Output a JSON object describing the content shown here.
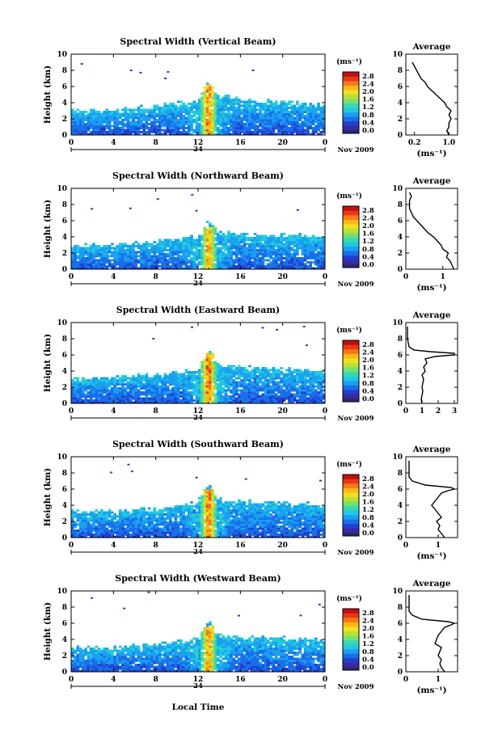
{
  "figure": {
    "xlabel": "Local Time",
    "date_label": "Nov 2009",
    "day_label": "24",
    "unit_label": "(ms⁻¹)",
    "average_title": "Average"
  },
  "colors": {
    "scale": [
      "#3a2aa0",
      "#1f3fd0",
      "#1a6fe8",
      "#1aa0f0",
      "#22c8e0",
      "#3ad8b0",
      "#78e070",
      "#b8e038",
      "#f0e020",
      "#f8b818",
      "#f87818",
      "#e83818",
      "#c01010"
    ],
    "base_floor": "#2a2a70",
    "text": "#000000"
  },
  "chart_data": [
    {
      "type": "heatmap",
      "title": "Spectral Width (Vertical Beam)",
      "ylabel": "Height (km)",
      "xlabel": "",
      "xlim": [
        0,
        24
      ],
      "ylim": [
        0,
        10
      ],
      "x_ticks": [
        "0",
        "4",
        "8",
        "12",
        "16",
        "20",
        "0"
      ],
      "y_ticks": [
        "0",
        "2",
        "4",
        "6",
        "8",
        "10"
      ],
      "colorbar": {
        "ticks": [
          "0.0",
          "0.4",
          "0.8",
          "1.2",
          "1.6",
          "2.0",
          "2.4",
          "2.8"
        ],
        "range": [
          0,
          3.0
        ]
      },
      "layer_top_km": [
        [
          0,
          3.0
        ],
        [
          4,
          3.0
        ],
        [
          8,
          3.6
        ],
        [
          12,
          4.2
        ],
        [
          13,
          6.5
        ],
        [
          14,
          4.8
        ],
        [
          18,
          4.2
        ],
        [
          22,
          4.0
        ],
        [
          24,
          3.6
        ]
      ],
      "core": {
        "x": 13.0,
        "top": 6.2,
        "value": 2.8
      },
      "average": {
        "title": "Average",
        "xlabel": "(ms⁻¹)",
        "x_ticks": [
          "0.2",
          "1.0"
        ],
        "xlim": [
          0.0,
          1.2
        ],
        "y": [
          0,
          0.5,
          1,
          1.5,
          2,
          2.5,
          3,
          3.5,
          4,
          4.5,
          5,
          5.5,
          6,
          6.5,
          7,
          7.5,
          8,
          8.5,
          9
        ],
        "x": [
          1.0,
          0.95,
          1.0,
          1.0,
          1.05,
          1.0,
          1.05,
          0.95,
          0.9,
          0.8,
          0.7,
          0.6,
          0.5,
          0.45,
          0.35,
          0.3,
          0.25,
          0.2,
          0.15
        ]
      }
    },
    {
      "type": "heatmap",
      "title": "Spectral Width (Northward Beam)",
      "ylabel": "Height (km)",
      "xlabel": "",
      "xlim": [
        0,
        24
      ],
      "ylim": [
        0,
        10
      ],
      "x_ticks": [
        "0",
        "4",
        "8",
        "12",
        "16",
        "20",
        "0"
      ],
      "y_ticks": [
        "0",
        "2",
        "4",
        "6",
        "8",
        "10"
      ],
      "colorbar": {
        "ticks": [
          "0.0",
          "0.4",
          "0.8",
          "1.2",
          "1.6",
          "2.0",
          "2.4",
          "2.8"
        ],
        "range": [
          0,
          3.0
        ]
      },
      "layer_top_km": [
        [
          0,
          2.8
        ],
        [
          4,
          3.0
        ],
        [
          8,
          3.4
        ],
        [
          12,
          4.0
        ],
        [
          13,
          6.0
        ],
        [
          14,
          4.5
        ],
        [
          18,
          4.2
        ],
        [
          22,
          4.2
        ],
        [
          24,
          4.0
        ]
      ],
      "core": {
        "x": 13.0,
        "top": 5.2,
        "value": 2.6
      },
      "average": {
        "title": "Average",
        "xlabel": "(ms⁻¹)",
        "x_ticks": [
          "0",
          "1"
        ],
        "xlim": [
          0,
          1.4
        ],
        "y": [
          0,
          0.5,
          1,
          1.5,
          2,
          2.5,
          3,
          3.5,
          4,
          4.5,
          5,
          5.5,
          6,
          6.5,
          7,
          7.5,
          8,
          8.5,
          9,
          9.5
        ],
        "x": [
          1.3,
          1.25,
          1.2,
          1.1,
          1.15,
          1.0,
          0.95,
          0.85,
          0.75,
          0.6,
          0.5,
          0.4,
          0.3,
          0.2,
          0.15,
          0.1,
          0.1,
          0.1,
          0.15,
          0.1
        ]
      }
    },
    {
      "type": "heatmap",
      "title": "Spectral Width (Eastward Beam)",
      "ylabel": "Height (km)",
      "xlabel": "",
      "xlim": [
        0,
        24
      ],
      "ylim": [
        0,
        10
      ],
      "x_ticks": [
        "0",
        "4",
        "8",
        "12",
        "16",
        "20",
        "0"
      ],
      "y_ticks": [
        "0",
        "2",
        "4",
        "6",
        "8",
        "10"
      ],
      "colorbar": {
        "ticks": [
          "0.0",
          "0.4",
          "0.8",
          "1.2",
          "1.6",
          "2.0",
          "2.4",
          "2.8"
        ],
        "range": [
          0,
          3.0
        ]
      },
      "layer_top_km": [
        [
          0,
          3.0
        ],
        [
          4,
          3.2
        ],
        [
          8,
          3.6
        ],
        [
          12,
          4.2
        ],
        [
          13,
          6.8
        ],
        [
          14,
          4.6
        ],
        [
          18,
          4.4
        ],
        [
          22,
          4.2
        ],
        [
          24,
          4.0
        ]
      ],
      "core": {
        "x": 13.0,
        "top": 6.3,
        "value": 2.9
      },
      "average": {
        "title": "Average",
        "xlabel": "",
        "x_ticks": [
          "0",
          "1",
          "2",
          "3"
        ],
        "xlim": [
          0,
          3.2
        ],
        "y": [
          0,
          0.5,
          1,
          1.5,
          2,
          2.5,
          3,
          3.5,
          4,
          4.5,
          5,
          5.5,
          5.8,
          6.0,
          6.2,
          6.4,
          6.6,
          7,
          7.5,
          8,
          8.5,
          9,
          9.5
        ],
        "x": [
          1.0,
          0.95,
          1.0,
          1.05,
          1.0,
          1.05,
          1.1,
          1.0,
          1.2,
          1.1,
          1.3,
          1.2,
          1.8,
          3.0,
          3.0,
          1.5,
          0.5,
          0.2,
          0.15,
          0.1,
          0.1,
          0.1,
          0.1
        ]
      }
    },
    {
      "type": "heatmap",
      "title": "Spectral Width (Southward Beam)",
      "ylabel": "Height (km)",
      "xlabel": "",
      "xlim": [
        0,
        24
      ],
      "ylim": [
        0,
        10
      ],
      "x_ticks": [
        "0",
        "4",
        "8",
        "12",
        "16",
        "20",
        "0"
      ],
      "y_ticks": [
        "0",
        "2",
        "4",
        "6",
        "8",
        "10"
      ],
      "colorbar": {
        "ticks": [
          "0.0",
          "0.4",
          "0.8",
          "1.2",
          "1.6",
          "2.0",
          "2.4",
          "2.8"
        ],
        "range": [
          0,
          3.0
        ]
      },
      "layer_top_km": [
        [
          0,
          3.2
        ],
        [
          4,
          3.2
        ],
        [
          8,
          3.6
        ],
        [
          12,
          4.4
        ],
        [
          13,
          6.8
        ],
        [
          14,
          4.6
        ],
        [
          18,
          4.4
        ],
        [
          22,
          4.2
        ],
        [
          24,
          4.0
        ]
      ],
      "core": {
        "x": 13.0,
        "top": 6.0,
        "value": 2.8
      },
      "average": {
        "title": "Average",
        "xlabel": "(ms⁻¹)",
        "x_ticks": [
          "0",
          "1"
        ],
        "xlim": [
          0,
          1.6
        ],
        "y": [
          0,
          0.5,
          1,
          1.5,
          2,
          2.5,
          3,
          3.5,
          4,
          4.5,
          5,
          5.5,
          5.8,
          6.0,
          6.2,
          6.5,
          7,
          7.5,
          8,
          8.5,
          9,
          9.5
        ],
        "x": [
          1.2,
          1.1,
          1.0,
          1.05,
          0.95,
          1.1,
          1.0,
          0.9,
          0.8,
          0.9,
          1.0,
          1.1,
          1.3,
          1.5,
          1.4,
          0.6,
          0.2,
          0.1,
          0.1,
          0.1,
          0.1,
          0.1
        ]
      }
    },
    {
      "type": "heatmap",
      "title": "Spectral Width (Westward Beam)",
      "ylabel": "Height (km)",
      "xlabel": "Local Time",
      "xlim": [
        0,
        24
      ],
      "ylim": [
        0,
        10
      ],
      "x_ticks": [
        "0",
        "4",
        "8",
        "12",
        "16",
        "20",
        "0"
      ],
      "y_ticks": [
        "0",
        "2",
        "4",
        "6",
        "8",
        "10"
      ],
      "colorbar": {
        "ticks": [
          "0.0",
          "0.4",
          "0.8",
          "1.2",
          "1.6",
          "2.0",
          "2.4",
          "2.8"
        ],
        "range": [
          0,
          3.0
        ]
      },
      "layer_top_km": [
        [
          0,
          3.0
        ],
        [
          4,
          3.0
        ],
        [
          8,
          3.4
        ],
        [
          12,
          4.0
        ],
        [
          13,
          6.5
        ],
        [
          14,
          4.4
        ],
        [
          18,
          4.2
        ],
        [
          22,
          4.0
        ],
        [
          24,
          3.8
        ]
      ],
      "core": {
        "x": 13.0,
        "top": 5.8,
        "value": 2.7
      },
      "average": {
        "title": "Average",
        "xlabel": "(ms⁻¹)",
        "x_ticks": [
          "0",
          "1"
        ],
        "xlim": [
          0,
          1.6
        ],
        "y": [
          0,
          0.5,
          1,
          1.5,
          2,
          2.5,
          3,
          3.5,
          4,
          4.5,
          5,
          5.5,
          5.8,
          6.0,
          6.2,
          6.5,
          7,
          7.5,
          8,
          8.5,
          9,
          9.5
        ],
        "x": [
          1.2,
          1.1,
          1.05,
          1.1,
          1.0,
          1.05,
          1.1,
          0.9,
          0.95,
          1.0,
          1.1,
          1.2,
          1.4,
          1.5,
          1.3,
          0.5,
          0.2,
          0.1,
          0.1,
          0.1,
          0.1,
          0.1
        ]
      }
    }
  ]
}
